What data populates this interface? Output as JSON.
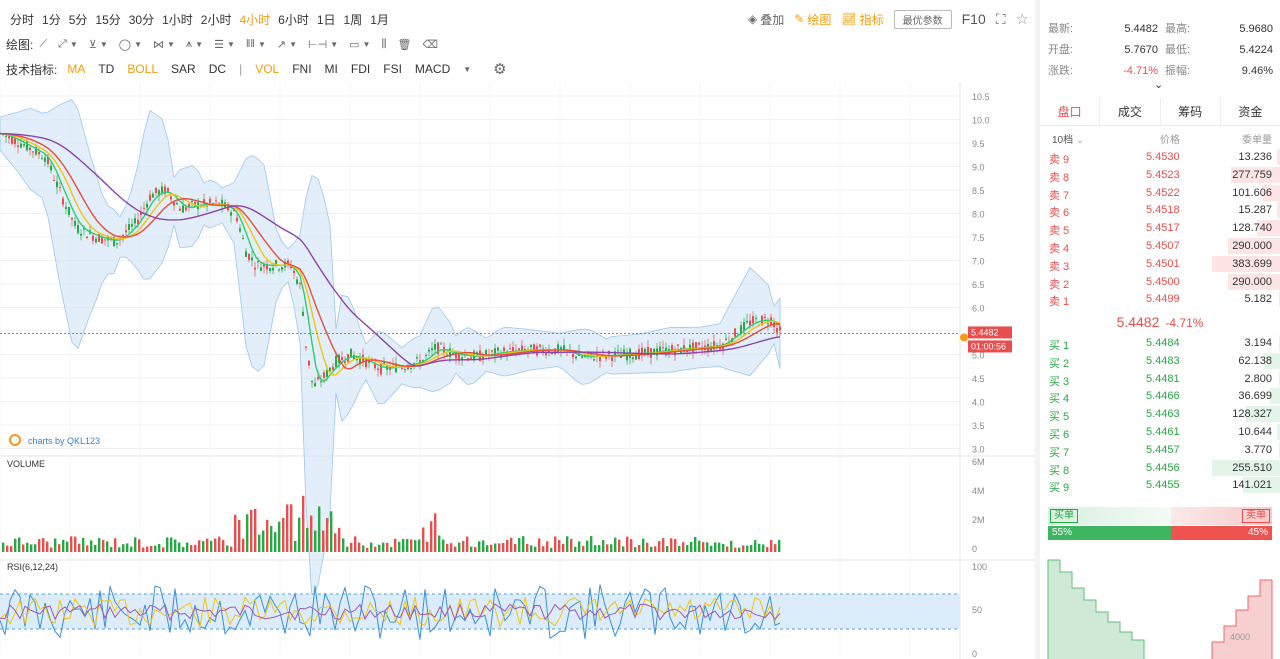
{
  "toolbar": {
    "timeframes": [
      "分时",
      "1分",
      "5分",
      "15分",
      "30分",
      "1小时",
      "2小时",
      "4小时",
      "6小时",
      "1日",
      "1周",
      "1月"
    ],
    "active_timeframe": "4小时",
    "overlay": "叠加",
    "draw": "绘图",
    "indicator": "指标",
    "settings_button": "最优参数",
    "f10": "F10"
  },
  "draw_tools": {
    "label": "绘图:"
  },
  "indicators_bar": {
    "label": "技术指标:",
    "main": [
      "MA",
      "TD",
      "BOLL",
      "SAR",
      "DC"
    ],
    "active_main": [
      "MA",
      "BOLL"
    ],
    "separator": "|",
    "sub": [
      "VOL",
      "FNI",
      "MI",
      "FDI",
      "FSI",
      "MACD"
    ],
    "active_sub": [
      "VOL"
    ]
  },
  "chart": {
    "price_axis": [
      "10.5",
      "10.0",
      "9.5",
      "9.0",
      "8.5",
      "8.0",
      "7.5",
      "7.0",
      "6.5",
      "6.0",
      "5.5",
      "5.0",
      "4.5",
      "4.0",
      "3.5",
      "3.0"
    ],
    "current_price": "5.4482",
    "countdown": "01:00:56",
    "watermark": "charts by QKL123",
    "volume_label": "VOLUME",
    "volume_axis": [
      "6M",
      "4M",
      "2M",
      "0"
    ],
    "rsi_label": "RSI(6,12,24)",
    "rsi_axis": [
      "100",
      "50",
      "0"
    ],
    "colors": {
      "up": "#27a844",
      "down": "#e84e4e",
      "boll": "#cfe4f7",
      "ma_slow": "#8e44ad"
    }
  },
  "summary": {
    "latest_label": "最新:",
    "latest": "5.4482",
    "high_label": "最高:",
    "high": "5.9680",
    "open_label": "开盘:",
    "open": "5.7670",
    "low_label": "最低:",
    "low": "5.4224",
    "change_label": "涨跌:",
    "change": "-4.71%",
    "amplitude_label": "振幅:",
    "amplitude": "9.46%"
  },
  "tabs": [
    "盘口",
    "成交",
    "筹码",
    "资金"
  ],
  "active_tab": "盘口",
  "depth_header": {
    "levels": "10档",
    "price": "价格",
    "qty": "委单量"
  },
  "asks": [
    {
      "label": "卖 9",
      "price": "5.4530",
      "qty": "13.236",
      "fill": 0.05
    },
    {
      "label": "卖 8",
      "price": "5.4523",
      "qty": "277.759",
      "fill": 0.72
    },
    {
      "label": "卖 7",
      "price": "5.4522",
      "qty": "101.606",
      "fill": 0.27
    },
    {
      "label": "卖 6",
      "price": "5.4518",
      "qty": "15.287",
      "fill": 0.05
    },
    {
      "label": "卖 5",
      "price": "5.4517",
      "qty": "128.740",
      "fill": 0.34
    },
    {
      "label": "卖 4",
      "price": "5.4507",
      "qty": "290.000",
      "fill": 0.76
    },
    {
      "label": "卖 3",
      "price": "5.4501",
      "qty": "383.699",
      "fill": 1.0
    },
    {
      "label": "卖 2",
      "price": "5.4500",
      "qty": "290.000",
      "fill": 0.76
    },
    {
      "label": "卖 1",
      "price": "5.4499",
      "qty": "5.182",
      "fill": 0.02
    }
  ],
  "mid": {
    "price": "5.4482",
    "change": "-4.71%"
  },
  "bids": [
    {
      "label": "买 1",
      "price": "5.4484",
      "qty": "3.194",
      "fill": 0.01
    },
    {
      "label": "买 2",
      "price": "5.4483",
      "qty": "62.138",
      "fill": 0.24
    },
    {
      "label": "买 3",
      "price": "5.4481",
      "qty": "2.800",
      "fill": 0.01
    },
    {
      "label": "买 4",
      "price": "5.4466",
      "qty": "36.699",
      "fill": 0.14
    },
    {
      "label": "买 5",
      "price": "5.4463",
      "qty": "128.327",
      "fill": 0.5
    },
    {
      "label": "买 6",
      "price": "5.4461",
      "qty": "10.644",
      "fill": 0.04
    },
    {
      "label": "买 7",
      "price": "5.4457",
      "qty": "3.770",
      "fill": 0.01
    },
    {
      "label": "买 8",
      "price": "5.4456",
      "qty": "255.510",
      "fill": 1.0
    },
    {
      "label": "买 9",
      "price": "5.4455",
      "qty": "141.021",
      "fill": 0.55
    }
  ],
  "ratio": {
    "buy_label": "买单",
    "sell_label": "卖单",
    "buy_pct": "55%",
    "sell_pct": "45%",
    "buy_fraction": 0.55
  },
  "depth_chart_axis": [
    "4000"
  ]
}
